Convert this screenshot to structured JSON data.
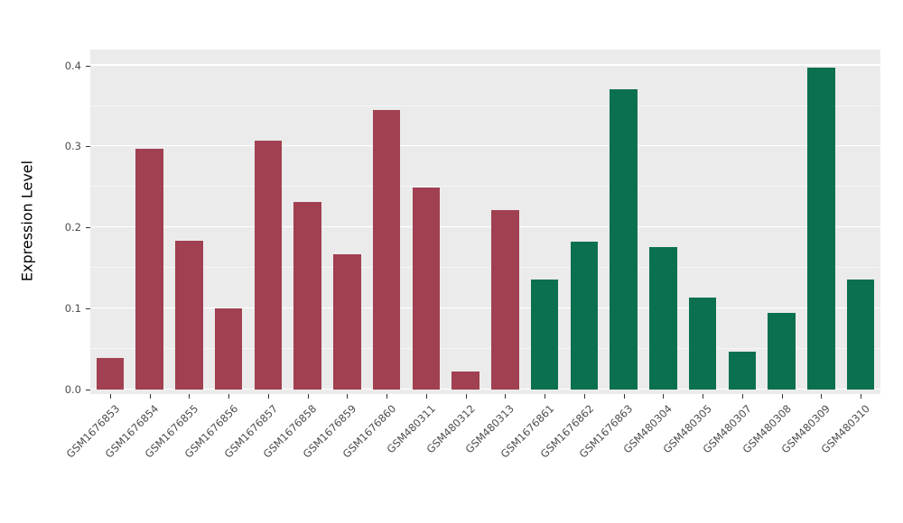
{
  "chart_data": {
    "type": "bar",
    "title": "",
    "xlabel": "",
    "ylabel": "Expression Level",
    "ylim": [
      0,
      0.414
    ],
    "yticks": [
      0.0,
      0.1,
      0.2,
      0.3,
      0.4
    ],
    "grid": true,
    "legend_position": "none",
    "panel_background": "#EBEBEB",
    "grid_color": "#FFFFFF",
    "tick_label_color": "#4D4D4D",
    "categories": [
      "GSM1676853",
      "GSM1676854",
      "GSM1676855",
      "GSM1676856",
      "GSM1676857",
      "GSM1676858",
      "GSM1676859",
      "GSM1676860",
      "GSM480311",
      "GSM480312",
      "GSM480313",
      "GSM1676861",
      "GSM1676862",
      "GSM1676863",
      "GSM480304",
      "GSM480305",
      "GSM480307",
      "GSM480308",
      "GSM480309",
      "GSM480310"
    ],
    "values": [
      0.039,
      0.297,
      0.184,
      0.1,
      0.307,
      0.232,
      0.167,
      0.345,
      0.249,
      0.022,
      0.222,
      0.136,
      0.182,
      0.371,
      0.176,
      0.114,
      0.047,
      0.095,
      0.397,
      0.136
    ],
    "groups": [
      "group1",
      "group1",
      "group1",
      "group1",
      "group1",
      "group1",
      "group1",
      "group1",
      "group1",
      "group1",
      "group1",
      "group2",
      "group2",
      "group2",
      "group2",
      "group2",
      "group2",
      "group2",
      "group2",
      "group2"
    ],
    "group_colors": {
      "group1": "#A04050",
      "group2": "#0A7050"
    }
  }
}
